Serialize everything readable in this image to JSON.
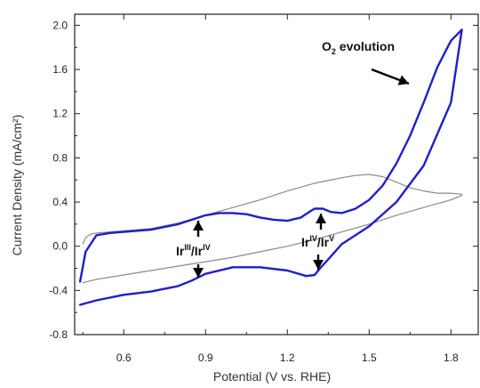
{
  "chart_data": {
    "type": "line",
    "title": "",
    "xlabel": "Potential (V vs. RHE)",
    "ylabel": "Current Density (mA/cm²)",
    "xlim": [
      0.42,
      1.9
    ],
    "ylim": [
      -0.8,
      2.1
    ],
    "xticks": [
      0.6,
      0.9,
      1.2,
      1.5,
      1.8
    ],
    "yticks": [
      -0.8,
      -0.4,
      0.0,
      0.4,
      0.8,
      1.2,
      1.6,
      2.0
    ],
    "xtick_labels": [
      "0.6",
      "0.9",
      "1.2",
      "1.5",
      "1.8"
    ],
    "ytick_labels": [
      "-0.8",
      "-0.4",
      "0.0",
      "0.4",
      "0.8",
      "1.2",
      "1.6",
      "2.0"
    ],
    "grid": false,
    "series": [
      {
        "color": "#8a8a8a",
        "width": 1.2,
        "x": [
          0.45,
          0.46,
          0.48,
          0.5,
          0.55,
          0.6,
          0.7,
          0.8,
          0.9,
          1.0,
          1.1,
          1.2,
          1.3,
          1.4,
          1.45,
          1.5,
          1.55,
          1.6,
          1.65,
          1.7,
          1.75,
          1.8,
          1.84,
          1.84,
          1.8,
          1.7,
          1.6,
          1.5,
          1.4,
          1.3,
          1.2,
          1.1,
          1.0,
          0.9,
          0.8,
          0.7,
          0.6,
          0.5,
          0.45
        ],
        "y": [
          0.02,
          0.08,
          0.11,
          0.12,
          0.13,
          0.14,
          0.16,
          0.21,
          0.28,
          0.35,
          0.42,
          0.5,
          0.57,
          0.62,
          0.64,
          0.65,
          0.63,
          0.58,
          0.53,
          0.5,
          0.48,
          0.48,
          0.47,
          0.46,
          0.42,
          0.35,
          0.28,
          0.2,
          0.13,
          0.06,
          0.0,
          -0.05,
          -0.1,
          -0.14,
          -0.18,
          -0.22,
          -0.26,
          -0.3,
          -0.33
        ]
      },
      {
        "color": "#1f1fc8",
        "width": 2.4,
        "x": [
          0.44,
          0.46,
          0.5,
          0.55,
          0.6,
          0.7,
          0.8,
          0.85,
          0.9,
          0.95,
          1.0,
          1.05,
          1.1,
          1.15,
          1.2,
          1.25,
          1.28,
          1.3,
          1.33,
          1.36,
          1.4,
          1.45,
          1.5,
          1.55,
          1.6,
          1.65,
          1.7,
          1.75,
          1.8,
          1.84,
          1.8,
          1.7,
          1.6,
          1.5,
          1.45,
          1.4,
          1.36,
          1.32,
          1.3,
          1.27,
          1.2,
          1.1,
          1.0,
          0.9,
          0.85,
          0.8,
          0.7,
          0.6,
          0.5,
          0.44
        ],
        "y": [
          -0.32,
          -0.05,
          0.1,
          0.12,
          0.13,
          0.15,
          0.2,
          0.24,
          0.28,
          0.3,
          0.3,
          0.29,
          0.26,
          0.24,
          0.23,
          0.26,
          0.31,
          0.34,
          0.34,
          0.31,
          0.3,
          0.34,
          0.42,
          0.55,
          0.75,
          1.0,
          1.3,
          1.62,
          1.86,
          1.96,
          1.3,
          0.73,
          0.4,
          0.18,
          0.1,
          0.02,
          -0.09,
          -0.2,
          -0.26,
          -0.27,
          -0.22,
          -0.19,
          -0.19,
          -0.25,
          -0.31,
          -0.36,
          -0.41,
          -0.44,
          -0.49,
          -0.53
        ]
      }
    ],
    "annotations": [
      {
        "main": "O",
        "sub": "2",
        "tail": " evolution"
      },
      {
        "p1": "Ir",
        "s1": "III",
        "p2": "/Ir",
        "s2": "IV"
      },
      {
        "p1": "Ir",
        "s1": "IV",
        "p2": "/Ir",
        "s2": "V"
      }
    ]
  }
}
